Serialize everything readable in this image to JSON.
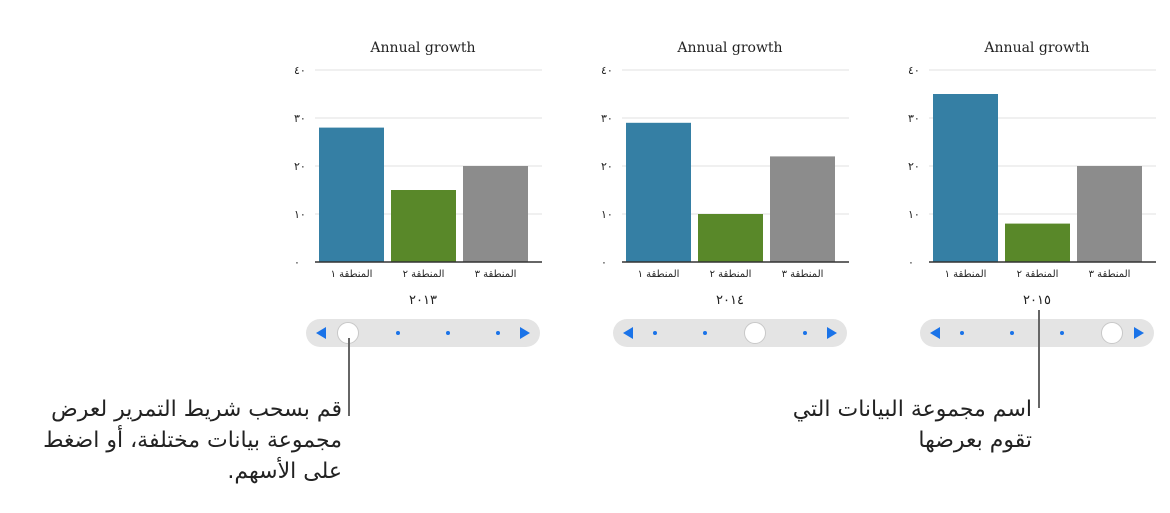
{
  "charts": [
    {
      "title": "Annual growth",
      "dataset_label": "٢٠١٣",
      "y_ticks": [
        "٠",
        "١٠",
        "٢٠",
        "٣٠",
        "٤٠"
      ],
      "categories": [
        "المنطقة ١",
        "المنطقة ٢",
        "المنطقة ٣"
      ]
    },
    {
      "title": "Annual growth",
      "dataset_label": "٢٠١٤",
      "y_ticks": [
        "٠",
        "١٠",
        "٢٠",
        "٣٠",
        "٤٠"
      ],
      "categories": [
        "المنطقة ١",
        "المنطقة ٢",
        "المنطقة ٣"
      ]
    },
    {
      "title": "Annual growth",
      "dataset_label": "٢٠١٥",
      "y_ticks": [
        "٠",
        "١٠",
        "٢٠",
        "٣٠",
        "٤٠"
      ],
      "categories": [
        "المنطقة ١",
        "المنطقة ٢",
        "المنطقة ٣"
      ]
    }
  ],
  "chart_data": [
    {
      "type": "bar",
      "title": "Annual growth",
      "xlabel": "٢٠١٣",
      "ylabel": "",
      "categories": [
        "المنطقة ١",
        "المنطقة ٢",
        "المنطقة ٣"
      ],
      "values": [
        28,
        15,
        20
      ],
      "ylim": [
        0,
        40
      ],
      "grid": true,
      "bar_colors": [
        "#357fa4",
        "#598829",
        "#8c8c8c"
      ]
    },
    {
      "type": "bar",
      "title": "Annual growth",
      "xlabel": "٢٠١٤",
      "ylabel": "",
      "categories": [
        "المنطقة ١",
        "المنطقة ٢",
        "المنطقة ٣"
      ],
      "values": [
        29,
        10,
        22
      ],
      "ylim": [
        0,
        40
      ],
      "grid": true,
      "bar_colors": [
        "#357fa4",
        "#598829",
        "#8c8c8c"
      ]
    },
    {
      "type": "bar",
      "title": "Annual growth",
      "xlabel": "٢٠١٥",
      "ylabel": "",
      "categories": [
        "المنطقة ١",
        "المنطقة ٢",
        "المنطقة ٣"
      ],
      "values": [
        35,
        8,
        20
      ],
      "ylim": [
        0,
        40
      ],
      "grid": true,
      "bar_colors": [
        "#357fa4",
        "#598829",
        "#8c8c8c"
      ]
    }
  ],
  "sliders": [
    {
      "dataset_count": 4,
      "selected_index": 0
    },
    {
      "dataset_count": 4,
      "selected_index": 2
    },
    {
      "dataset_count": 4,
      "selected_index": 3
    }
  ],
  "callouts": {
    "slider_text": "قم بسحب شريط التمرير لعرض مجموعة بيانات مختلفة، أو اضغط على الأسهم.",
    "dataset_text": "اسم مجموعة البيانات التي تقوم بعرضها"
  },
  "colors": {
    "accent": "#1a73e8",
    "slider_track": "#e4e4e4",
    "gridline": "#e0e0e0",
    "axis": "#333333"
  }
}
